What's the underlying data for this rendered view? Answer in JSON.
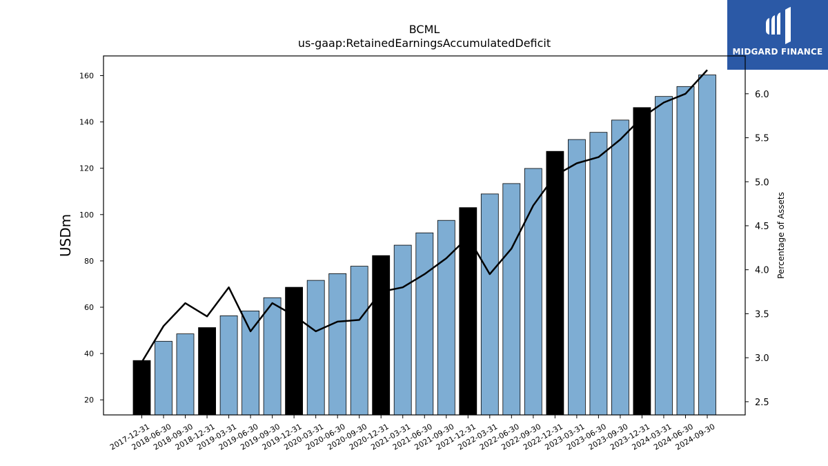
{
  "logo": {
    "text": "MIDGARD FINANCE",
    "background": "#2b59a6"
  },
  "chart_data": {
    "type": "bar",
    "title": "BCML",
    "subtitle": "us-gaap:RetainedEarningsAccumulatedDeficit",
    "ylabel": "USDm",
    "y2label": "Percentage of Assets",
    "ylim": [
      13.5,
      168.5
    ],
    "y2lim": [
      2.35,
      6.43
    ],
    "yticks": [
      20,
      40,
      60,
      80,
      100,
      120,
      140,
      160
    ],
    "y2ticks": [
      "2.5",
      "3.0",
      "3.5",
      "4.0",
      "4.5",
      "5.0",
      "5.5",
      "6.0"
    ],
    "categories": [
      "2017-12-31",
      "2018-06-30",
      "2018-09-30",
      "2018-12-31",
      "2019-03-31",
      "2019-06-30",
      "2019-09-30",
      "2019-12-31",
      "2020-03-31",
      "2020-06-30",
      "2020-09-30",
      "2020-12-31",
      "2021-03-31",
      "2021-06-30",
      "2021-09-30",
      "2021-12-31",
      "2022-03-31",
      "2022-06-30",
      "2022-09-30",
      "2022-12-31",
      "2023-03-31",
      "2023-06-30",
      "2023-09-30",
      "2023-12-31",
      "2024-03-31",
      "2024-06-30",
      "2024-09-30"
    ],
    "series": [
      {
        "type": "bar",
        "values": [
          37.0,
          45.3,
          48.5,
          51.2,
          56.3,
          58.4,
          64.1,
          68.6,
          71.6,
          74.5,
          77.7,
          82.3,
          86.8,
          92.1,
          97.5,
          103.0,
          108.9,
          113.4,
          119.9,
          127.3,
          132.4,
          135.5,
          140.8,
          146.2,
          151.0,
          155.3,
          160.3
        ]
      },
      {
        "type": "line",
        "axis": "right",
        "values": [
          2.95,
          3.36,
          3.62,
          3.47,
          3.8,
          3.3,
          3.62,
          3.48,
          3.3,
          3.41,
          3.43,
          3.75,
          3.8,
          3.95,
          4.13,
          4.37,
          3.95,
          4.24,
          4.73,
          5.07,
          5.21,
          5.28,
          5.48,
          5.73,
          5.9,
          6.0,
          6.27
        ]
      }
    ],
    "year_end_color": "#000000",
    "bar_color": "#7eadd3",
    "line_color": "#000000",
    "grid": false
  }
}
